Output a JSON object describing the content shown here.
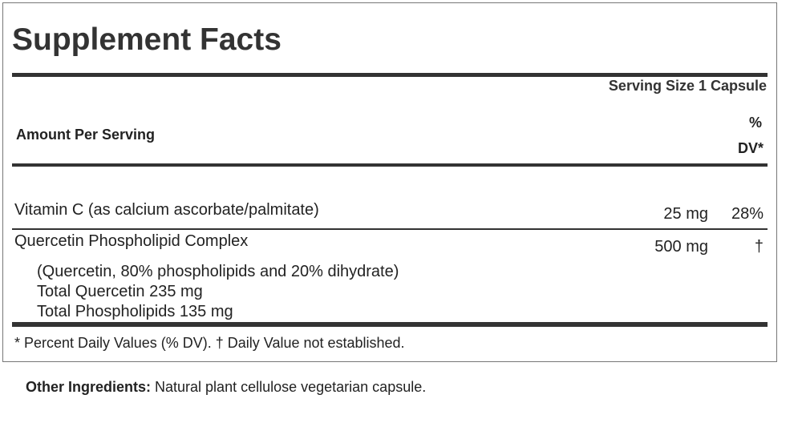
{
  "title": "Supplement Facts",
  "serving_size": "Serving Size 1 Capsule",
  "amount_per_serving": "Amount Per Serving",
  "dv_header_1": "%",
  "dv_header_2": "DV*",
  "rows": [
    {
      "name": "Vitamin C (as calcium ascorbate/palmitate)",
      "amount": "25 mg",
      "dv": "28%"
    },
    {
      "name": "Quercetin Phospholipid Complex",
      "amount": "500 mg",
      "dv": "†",
      "details": [
        "(Quercetin, 80% phospholipids and 20% dihydrate)",
        "Total Quercetin 235 mg",
        "Total Phospholipids 135 mg"
      ]
    }
  ],
  "footnote": "* Percent Daily Values (% DV). † Daily Value not established.",
  "other_label": "Other Ingredients:",
  "other_text": " Natural plant cellulose vegetarian capsule."
}
